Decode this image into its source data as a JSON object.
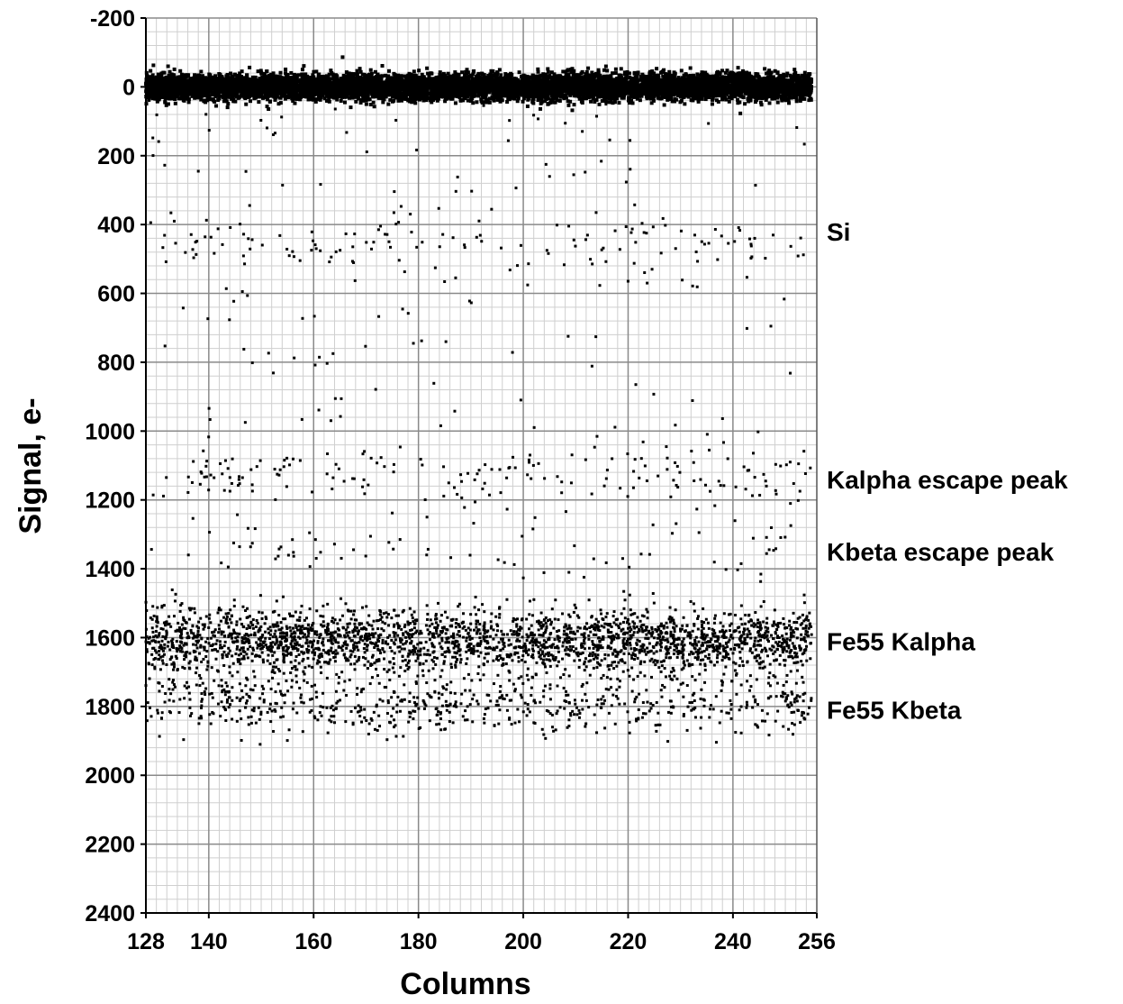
{
  "chart_data": {
    "type": "scatter",
    "title": "",
    "xlabel": "Columns",
    "ylabel": "Signal, e-",
    "xlim": [
      128,
      256
    ],
    "ylim": [
      -200,
      2400
    ],
    "y_inverted": true,
    "x_ticks": [
      128,
      140,
      160,
      180,
      200,
      220,
      240,
      256
    ],
    "y_ticks": [
      -200,
      0,
      200,
      400,
      600,
      800,
      1000,
      1200,
      1400,
      1600,
      1800,
      2000,
      2200,
      2400
    ],
    "grid": "major and minor",
    "marker_color": "#000000",
    "grid_major_color": "#8a8a8a",
    "grid_minor_color": "#cfcfcf",
    "annotations": [
      {
        "text": "Si",
        "y": 420
      },
      {
        "text": "Kalpha escape peak",
        "y": 1140
      },
      {
        "text": "Kbeta escape peak",
        "y": 1350
      },
      {
        "text": "Fe55 Kalpha",
        "y": 1610
      },
      {
        "text": "Fe55 Kbeta",
        "y": 1810
      }
    ],
    "populations": [
      {
        "description_value": 0,
        "center": 0,
        "spread": 18,
        "count": 9000
      },
      {
        "center": 1610,
        "spread": 45,
        "count": 2600
      },
      {
        "center": 1790,
        "spread": 45,
        "count": 700
      },
      {
        "center": 1130,
        "spread": 40,
        "count": 160
      },
      {
        "center": 1340,
        "spread": 30,
        "count": 45
      },
      {
        "center": 450,
        "spread": 40,
        "count": 110
      },
      {
        "center_range": [
          50,
          1500
        ],
        "count": 220
      }
    ]
  }
}
